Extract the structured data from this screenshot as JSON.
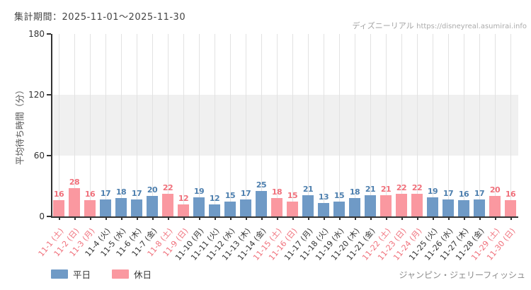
{
  "header": {
    "period_label": "集計期間：2025-11-01～2025-11-30",
    "watermark_brand": "ディズニーリアル",
    "watermark_url": "https://disneyreal.asumirai.info"
  },
  "footer": {
    "attraction_name": "ジャンピン・ジェリーフィッシュ"
  },
  "legend": {
    "items": [
      {
        "label": "平日",
        "kind": "weekday"
      },
      {
        "label": "休日",
        "kind": "holiday"
      }
    ]
  },
  "colors": {
    "background": "#ffffff",
    "axis_line": "#333333",
    "tick_text": "#333333",
    "grid_line": "#e2e2e2",
    "shaded_band": "#f0f0f0",
    "title_text": "#444444",
    "watermark_text": "#a3a3a3",
    "attraction_text": "#8a8a8a"
  },
  "chart_data": {
    "type": "bar",
    "title": "集計期間：2025-11-01～2025-11-30",
    "xlabel": "",
    "ylabel": "平均待ち時間（分）",
    "ylim": [
      0,
      180
    ],
    "yticks": [
      0,
      60,
      120,
      180
    ],
    "shaded_band": [
      60,
      120
    ],
    "grid": "vertical gridline at each day column",
    "legend_position": "bottom-left",
    "kinds": {
      "weekday": {
        "legend": "平日",
        "bar_color": "#6f9ac6",
        "value_color": "#4d7fae",
        "tick_color": "#333333"
      },
      "holiday": {
        "legend": "休日",
        "bar_color": "#fa98a0",
        "value_color": "#f0707b",
        "tick_color": "#f0707b"
      }
    },
    "points": [
      {
        "label": "11-1 (土)",
        "value": 16,
        "kind": "holiday"
      },
      {
        "label": "11-2 (日)",
        "value": 28,
        "kind": "holiday"
      },
      {
        "label": "11-3 (月)",
        "value": 16,
        "kind": "holiday"
      },
      {
        "label": "11-4 (火)",
        "value": 17,
        "kind": "weekday"
      },
      {
        "label": "11-5 (水)",
        "value": 18,
        "kind": "weekday"
      },
      {
        "label": "11-6 (木)",
        "value": 17,
        "kind": "weekday"
      },
      {
        "label": "11-7 (金)",
        "value": 20,
        "kind": "weekday"
      },
      {
        "label": "11-8 (土)",
        "value": 22,
        "kind": "holiday"
      },
      {
        "label": "11-9 (日)",
        "value": 12,
        "kind": "holiday"
      },
      {
        "label": "11-10 (月)",
        "value": 19,
        "kind": "weekday"
      },
      {
        "label": "11-11 (火)",
        "value": 12,
        "kind": "weekday"
      },
      {
        "label": "11-12 (水)",
        "value": 15,
        "kind": "weekday"
      },
      {
        "label": "11-13 (木)",
        "value": 17,
        "kind": "weekday"
      },
      {
        "label": "11-14 (金)",
        "value": 25,
        "kind": "weekday"
      },
      {
        "label": "11-15 (土)",
        "value": 18,
        "kind": "holiday"
      },
      {
        "label": "11-16 (日)",
        "value": 15,
        "kind": "holiday"
      },
      {
        "label": "11-17 (月)",
        "value": 21,
        "kind": "weekday"
      },
      {
        "label": "11-18 (火)",
        "value": 13,
        "kind": "weekday"
      },
      {
        "label": "11-19 (水)",
        "value": 15,
        "kind": "weekday"
      },
      {
        "label": "11-20 (木)",
        "value": 18,
        "kind": "weekday"
      },
      {
        "label": "11-21 (金)",
        "value": 21,
        "kind": "weekday"
      },
      {
        "label": "11-22 (土)",
        "value": 21,
        "kind": "holiday"
      },
      {
        "label": "11-23 (日)",
        "value": 22,
        "kind": "holiday"
      },
      {
        "label": "11-24 (月)",
        "value": 22,
        "kind": "holiday"
      },
      {
        "label": "11-25 (火)",
        "value": 19,
        "kind": "weekday"
      },
      {
        "label": "11-26 (水)",
        "value": 17,
        "kind": "weekday"
      },
      {
        "label": "11-27 (木)",
        "value": 16,
        "kind": "weekday"
      },
      {
        "label": "11-28 (金)",
        "value": 17,
        "kind": "weekday"
      },
      {
        "label": "11-29 (土)",
        "value": 20,
        "kind": "holiday"
      },
      {
        "label": "11-30 (日)",
        "value": 16,
        "kind": "holiday"
      }
    ]
  }
}
